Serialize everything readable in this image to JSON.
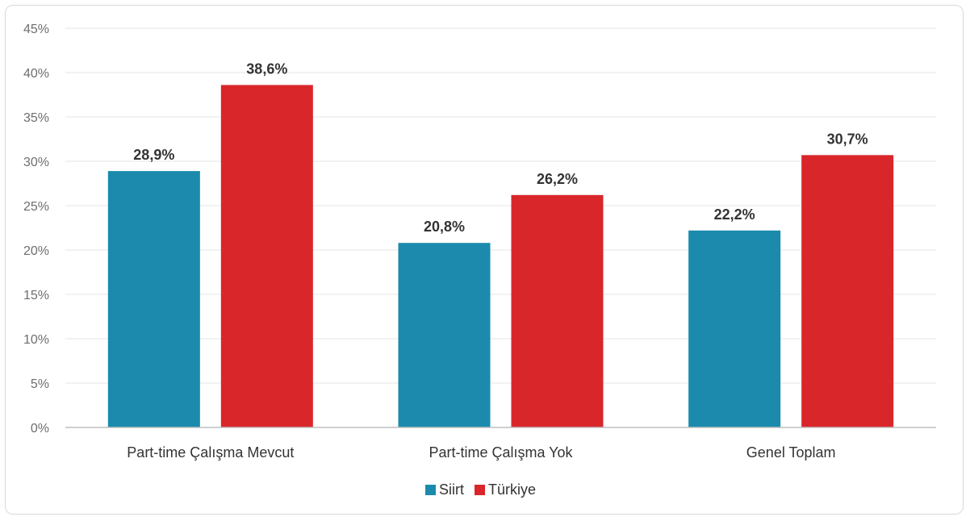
{
  "chart_data": {
    "type": "bar",
    "categories": [
      "Part-time Çalışma Mevcut",
      "Part-time Çalışma Yok",
      "Genel Toplam"
    ],
    "series": [
      {
        "name": "Siirt",
        "values": [
          28.9,
          20.8,
          22.2
        ],
        "labels": [
          "28,9%",
          "20,8%",
          "22,2%"
        ],
        "color": "#1b8aad"
      },
      {
        "name": "Türkiye",
        "values": [
          38.6,
          26.2,
          30.7
        ],
        "labels": [
          "38,6%",
          "26,2%",
          "30,7%"
        ],
        "color": "#d9262a"
      }
    ],
    "ylim": [
      0,
      45
    ],
    "yticks": [
      0,
      5,
      10,
      15,
      20,
      25,
      30,
      35,
      40,
      45
    ],
    "ytick_labels": [
      "0%",
      "5%",
      "10%",
      "15%",
      "20%",
      "25%",
      "30%",
      "35%",
      "40%",
      "45%"
    ],
    "grid": true,
    "legend": "bottom-center",
    "title": "",
    "xlabel": "",
    "ylabel": ""
  }
}
